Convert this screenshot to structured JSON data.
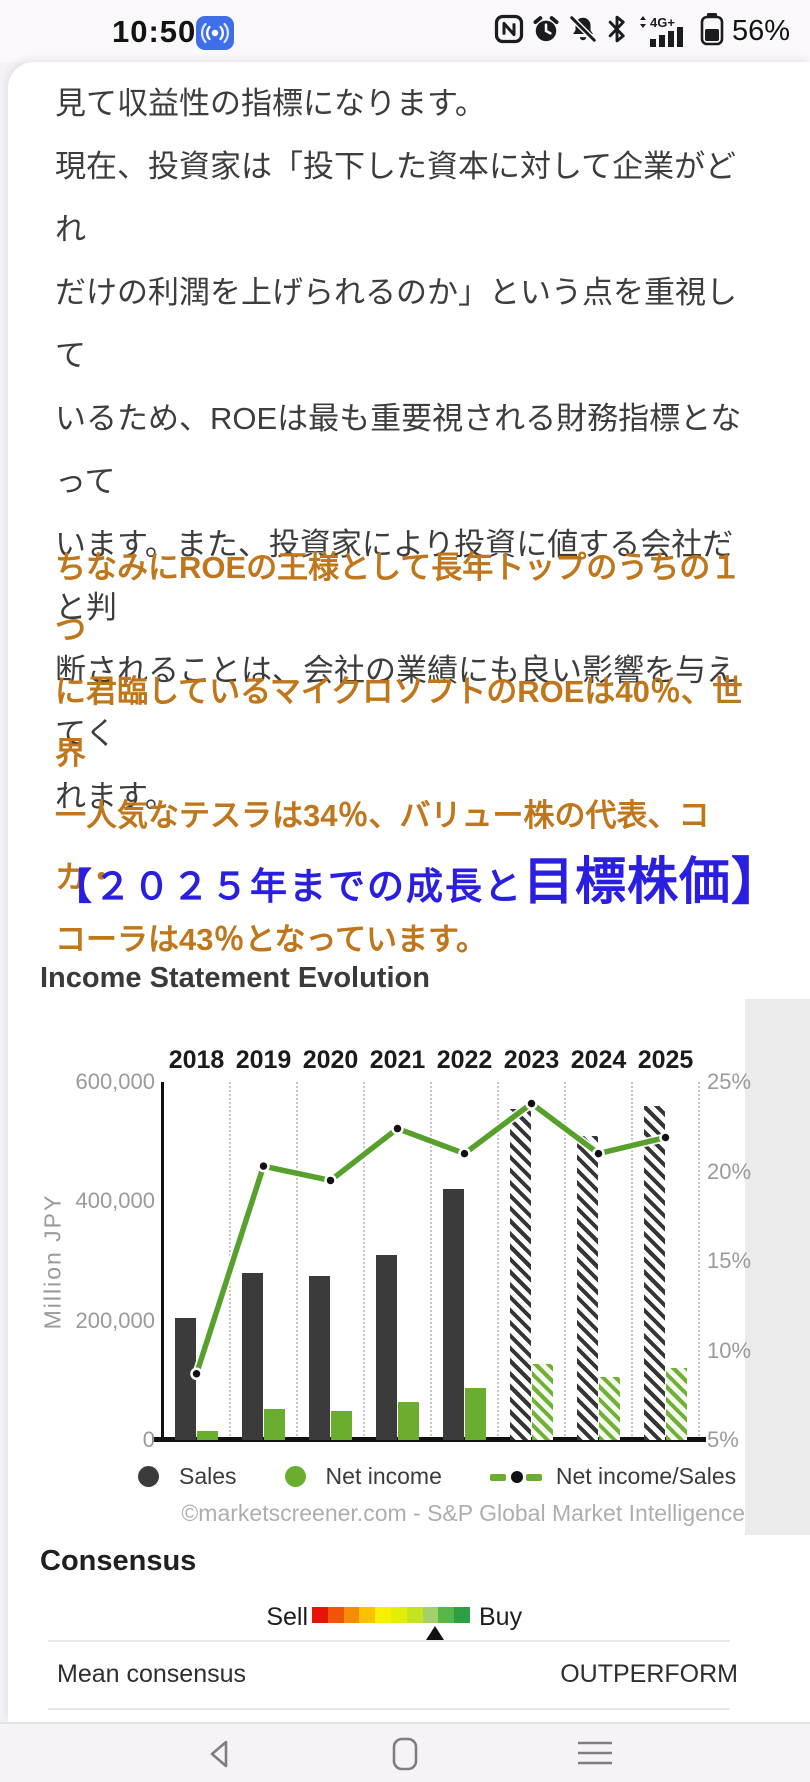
{
  "status_bar": {
    "time": "10:50",
    "battery": "56%",
    "network_label": "4G+",
    "icons": [
      "broadcast-badge",
      "nfc",
      "alarm",
      "bell-muted",
      "bluetooth",
      "signal-4g",
      "battery"
    ]
  },
  "article": {
    "paragraph1": "見て収益性の指標になります。\n現在、投資家は「投下した資本に対して企業がどれ\nだけの利潤を上げられるのか」という点を重視して\nいるため、ROEは最も重要視される財務指標となって\nいます。また、投資家により投資に値する会社だと判\n断されることは、会社の業績にも良い影響を与えてく\nれます。",
    "highlight": "ちなみにROEの王様として長年トップのうちの１つ\nに君臨しているマイクロソフトのROEは40％、世界\n一人気なテスラは34％、バリュー株の代表、コカ・\nコーラは43％となっています。",
    "highlight_color": "#c0761a",
    "heading_prefix": "【２０２５年までの成長と",
    "heading_emphasis": "目標株価】",
    "heading_color": "#2a1ee0"
  },
  "chart_data": {
    "type": "bar+line",
    "title": "Income Statement Evolution",
    "categories": [
      "2018",
      "2019",
      "2020",
      "2021",
      "2022",
      "2023",
      "2024",
      "2025"
    ],
    "forecast_from": "2023",
    "series": [
      {
        "name": "Sales",
        "type": "bar",
        "axis": "left",
        "color": "#3b3b3b",
        "values": [
          205000,
          280000,
          275000,
          310000,
          420000,
          555000,
          510000,
          560000
        ]
      },
      {
        "name": "Net income",
        "type": "bar",
        "axis": "left",
        "color": "#69ae2e",
        "values": [
          15000,
          52000,
          48000,
          63000,
          87000,
          128000,
          106000,
          121000
        ]
      },
      {
        "name": "Net income/Sales",
        "type": "line",
        "axis": "right",
        "color": "#57a02b",
        "values": [
          8.7,
          20.3,
          19.5,
          22.4,
          21.0,
          23.8,
          21.0,
          21.9
        ]
      }
    ],
    "left_axis": {
      "label": "Million JPY",
      "min": 0,
      "max": 600000,
      "ticks": [
        "600,000",
        "400,000",
        "200,000",
        "0"
      ]
    },
    "right_axis": {
      "min": 5,
      "max": 25,
      "ticks": [
        "25%",
        "20%",
        "15%",
        "10%",
        "5%"
      ]
    },
    "legend": [
      "Sales",
      "Net income",
      "Net income/Sales"
    ],
    "grid": "vertical-dotted",
    "attribution": "©marketscreener.com - S&P Global Market Intelligence"
  },
  "consensus": {
    "title": "Consensus",
    "sell_label": "Sell",
    "buy_label": "Buy",
    "marker_pct": 78,
    "gradient": [
      "#e71309",
      "#f25407",
      "#f88c03",
      "#fbc102",
      "#f7ef05",
      "#e3ed08",
      "#c4e51c",
      "#a3d06b",
      "#55b649",
      "#2d9e41"
    ],
    "rows": [
      {
        "label": "Mean consensus",
        "value": "OUTPERFORM"
      }
    ]
  },
  "nav": {
    "buttons": [
      "back",
      "home",
      "menu"
    ]
  }
}
